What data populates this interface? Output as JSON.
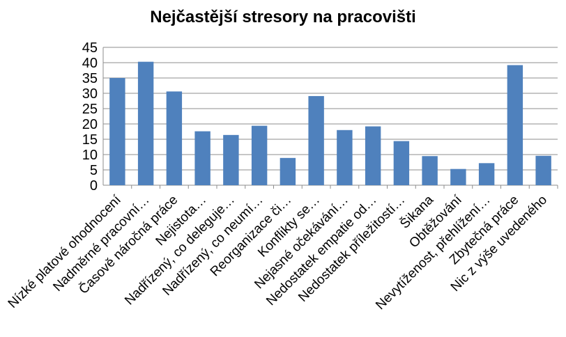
{
  "chart_data": {
    "type": "bar",
    "title": "Nejčastější stresory na pracovišti",
    "xlabel": "",
    "ylabel": "",
    "ylim": [
      0,
      45
    ],
    "yticks": [
      0,
      5,
      10,
      15,
      20,
      25,
      30,
      35,
      40,
      45
    ],
    "grid": true,
    "legend": "none",
    "bar_color": "#4f81bd",
    "categories": [
      "Nízké platové ohodnocení",
      "Nadměrné pracovní…",
      "Časově náročná práce",
      "Nejistota…",
      "Nadřízený, co deleguje…",
      "Nadřízený, co neumí…",
      "Reorganizace či…",
      "Konflikty se…",
      "Nejasné očekávání…",
      "Nedostatek empatie od…",
      "Nedostatek příležitostí…",
      "Šikana",
      "Obtěžování",
      "Nevytíženost, přehlížení…",
      "Zbytečná práce",
      "Nic z výše uvedeného"
    ],
    "values": [
      35,
      40.3,
      30.6,
      17.6,
      16.4,
      19.4,
      8.9,
      29.1,
      18,
      19.2,
      14.4,
      9.5,
      5.3,
      7.2,
      39.2,
      9.6
    ]
  }
}
